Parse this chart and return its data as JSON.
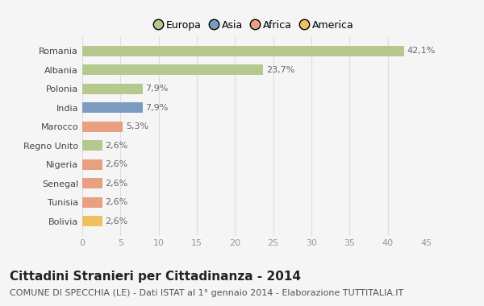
{
  "countries": [
    "Romania",
    "Albania",
    "Polonia",
    "India",
    "Marocco",
    "Regno Unito",
    "Nigeria",
    "Senegal",
    "Tunisia",
    "Bolivia"
  ],
  "values": [
    42.1,
    23.7,
    7.9,
    7.9,
    5.3,
    2.6,
    2.6,
    2.6,
    2.6,
    2.6
  ],
  "labels": [
    "42,1%",
    "23,7%",
    "7,9%",
    "7,9%",
    "5,3%",
    "2,6%",
    "2,6%",
    "2,6%",
    "2,6%",
    "2,6%"
  ],
  "colors": [
    "#b5c98e",
    "#b5c98e",
    "#b5c98e",
    "#7b9cc0",
    "#e8a080",
    "#b5c98e",
    "#e8a080",
    "#e8a080",
    "#e8a080",
    "#f0c060"
  ],
  "legend_labels": [
    "Europa",
    "Asia",
    "Africa",
    "America"
  ],
  "legend_colors": [
    "#b5c98e",
    "#7b9cc0",
    "#e8a080",
    "#f0c060"
  ],
  "title": "Cittadini Stranieri per Cittadinanza - 2014",
  "subtitle": "COMUNE DI SPECCHIA (LE) - Dati ISTAT al 1° gennaio 2014 - Elaborazione TUTTITALIA.IT",
  "xlim": [
    0,
    45
  ],
  "xticks": [
    0,
    5,
    10,
    15,
    20,
    25,
    30,
    35,
    40,
    45
  ],
  "background_color": "#f5f5f5",
  "grid_color": "#dddddd",
  "bar_height": 0.55,
  "title_fontsize": 11,
  "subtitle_fontsize": 8,
  "label_fontsize": 8,
  "tick_fontsize": 8,
  "legend_fontsize": 9
}
